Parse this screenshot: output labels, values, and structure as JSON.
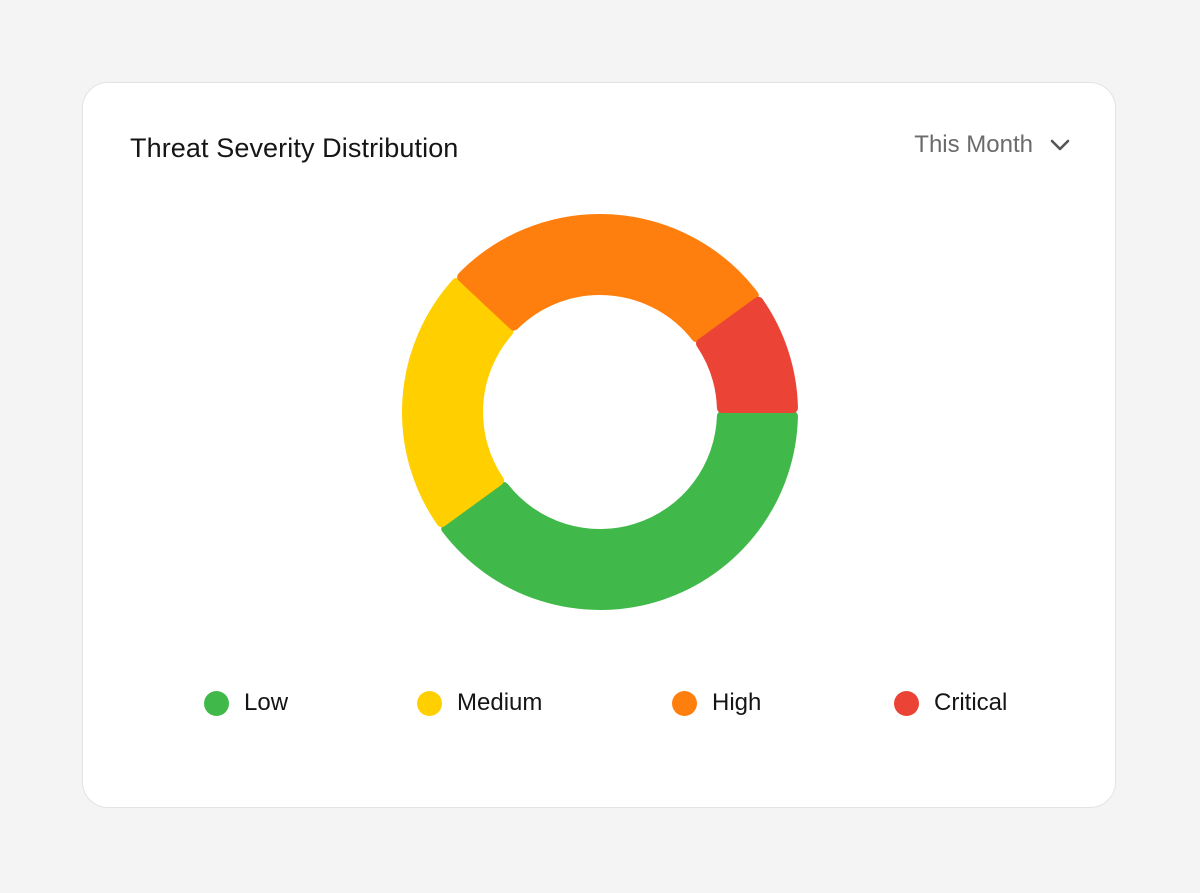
{
  "card": {
    "title": "Threat Severity Distribution",
    "period_selector": {
      "selected": "This Month",
      "icon": "chevron-down-icon"
    }
  },
  "chart_data": {
    "type": "pie",
    "variant": "donut",
    "title": "Threat Severity Distribution",
    "categories": [
      "Low",
      "Medium",
      "High",
      "Critical"
    ],
    "values": [
      40,
      22,
      28,
      10
    ],
    "colors": [
      "#41b94a",
      "#ffcf00",
      "#ff7f0e",
      "#eb4335"
    ],
    "legend_position": "bottom"
  },
  "legend": [
    {
      "label": "Low",
      "color": "#41b94a"
    },
    {
      "label": "Medium",
      "color": "#ffcf00"
    },
    {
      "label": "High",
      "color": "#ff7f0e"
    },
    {
      "label": "Critical",
      "color": "#eb4335"
    }
  ]
}
